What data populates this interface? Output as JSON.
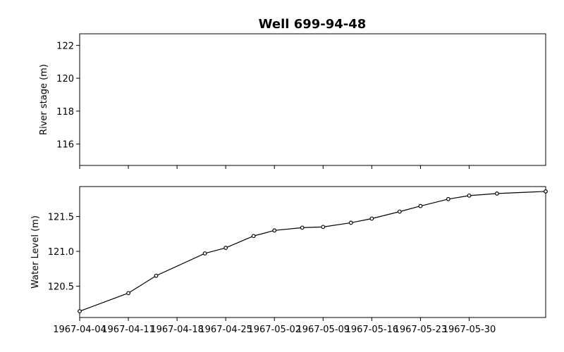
{
  "title": "Well 699-94-48",
  "chart_data": [
    {
      "type": "line",
      "panel": "top",
      "ylabel": "River stage (m)",
      "ylim": [
        114.7,
        122.7
      ],
      "yticks": [
        116,
        118,
        120,
        122
      ],
      "x_range": [
        "1967-04-04",
        "1967-06-10"
      ],
      "x_ticks": [
        "1967-04-04",
        "1967-04-11",
        "1967-04-18",
        "1967-04-25",
        "1967-05-02",
        "1967-05-09",
        "1967-05-16",
        "1967-05-23",
        "1967-05-30"
      ],
      "series": []
    },
    {
      "type": "line",
      "panel": "bottom",
      "ylabel": "Water Level (m)",
      "ylim": [
        120.05,
        121.93
      ],
      "yticks": [
        "120.5",
        "121.0",
        "121.5"
      ],
      "x_range": [
        "1967-04-04",
        "1967-06-10"
      ],
      "x_ticks": [
        "1967-04-04",
        "1967-04-11",
        "1967-04-18",
        "1967-04-25",
        "1967-05-02",
        "1967-05-09",
        "1967-05-16",
        "1967-05-23",
        "1967-05-30"
      ],
      "series": [
        {
          "marker": "circle",
          "color": "#000000",
          "points": [
            {
              "x": "1967-04-04",
              "y": 120.14
            },
            {
              "x": "1967-04-11",
              "y": 120.4
            },
            {
              "x": "1967-04-15",
              "y": 120.65
            },
            {
              "x": "1967-04-22",
              "y": 120.97
            },
            {
              "x": "1967-04-25",
              "y": 121.05
            },
            {
              "x": "1967-04-29",
              "y": 121.22
            },
            {
              "x": "1967-05-02",
              "y": 121.3
            },
            {
              "x": "1967-05-06",
              "y": 121.34
            },
            {
              "x": "1967-05-09",
              "y": 121.35
            },
            {
              "x": "1967-05-13",
              "y": 121.41
            },
            {
              "x": "1967-05-16",
              "y": 121.47
            },
            {
              "x": "1967-05-20",
              "y": 121.57
            },
            {
              "x": "1967-05-23",
              "y": 121.65
            },
            {
              "x": "1967-05-27",
              "y": 121.75
            },
            {
              "x": "1967-05-30",
              "y": 121.8
            },
            {
              "x": "1967-06-03",
              "y": 121.83
            },
            {
              "x": "1967-06-10",
              "y": 121.86
            }
          ]
        }
      ]
    }
  ]
}
